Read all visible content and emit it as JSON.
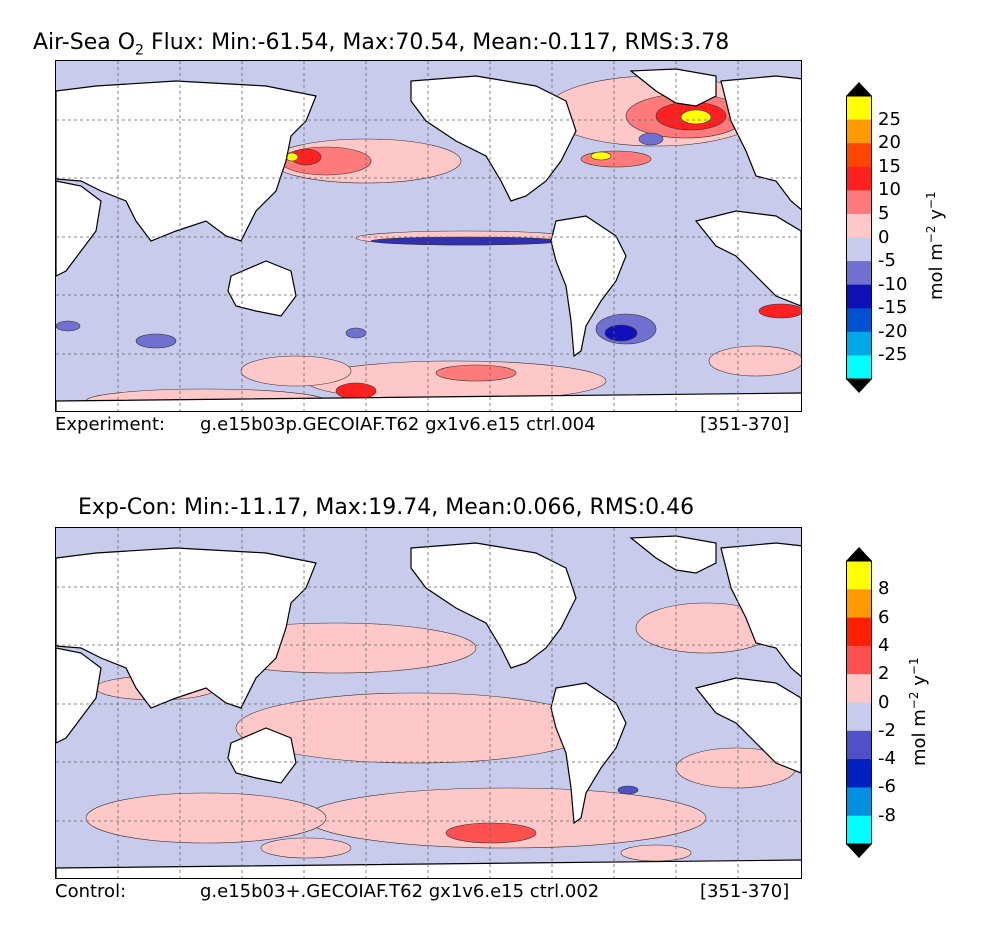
{
  "colors": {
    "ocean_base": "#c9cbed",
    "land": "#ffffff",
    "coast": "#000000"
  },
  "panel1": {
    "title_prefix": "Air-Sea O",
    "title_sub": "2",
    "title_rest": " Flux: Min:-61.54, Max:70.54, Mean:-0.117, RMS:3.78",
    "footer_label": "Experiment:",
    "footer_case": "g.e15b03p.GECOIAF.T62 gx1v6.e15 ctrl.004",
    "footer_years": "[351-370]",
    "colorbar": {
      "units_base": "mol m",
      "units_exp1": "−2",
      "units_mid": " y",
      "units_exp2": "−1",
      "ticks": [
        "25",
        "20",
        "15",
        "10",
        "5",
        "0",
        "-5",
        "-10",
        "-15",
        "-20",
        "-25"
      ],
      "colors": [
        "#ffff00",
        "#ff9900",
        "#ff4500",
        "#ff2020",
        "#ff7a7a",
        "#ffc8c8",
        "#c9cbed",
        "#7070d0",
        "#1010b8",
        "#0050d0",
        "#00a8e8",
        "#00ffff"
      ]
    }
  },
  "panel2": {
    "title": "Exp-Con: Min:-11.17, Max:19.74, Mean:0.066, RMS:0.46",
    "footer_label": "Control:",
    "footer_case": "g.e15b03+.GECOIAF.T62 gx1v6.e15 ctrl.002",
    "footer_years": "[351-370]",
    "colorbar": {
      "units_base": "mol m",
      "units_exp1": "−2",
      "units_mid": " y",
      "units_exp2": "−1",
      "ticks": [
        "8",
        "6",
        "4",
        "2",
        "0",
        "-2",
        "-4",
        "-6",
        "-8"
      ],
      "colors": [
        "#ffff00",
        "#ff9900",
        "#ff2000",
        "#ff5050",
        "#ffc8c8",
        "#c9cbed",
        "#5050c8",
        "#0020c0",
        "#0090e0",
        "#00ffff"
      ]
    }
  }
}
